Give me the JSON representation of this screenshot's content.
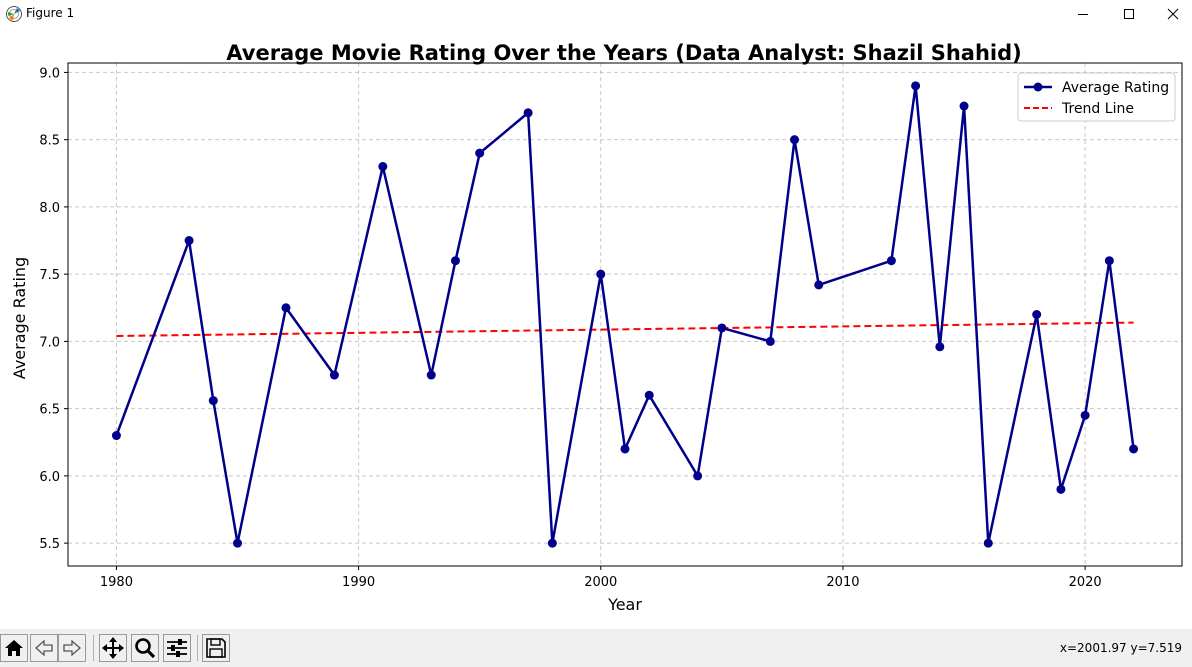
{
  "window": {
    "title": "Figure 1",
    "icons": [
      "matplotlib-app-icon",
      "minimize-icon",
      "maximize-icon",
      "close-icon"
    ]
  },
  "toolbar": {
    "buttons": [
      "home-icon",
      "back-arrow-icon",
      "forward-arrow-icon",
      "pan-icon",
      "zoom-icon",
      "configure-subplots-icon",
      "save-icon"
    ],
    "coordinates": "x=2001.97 y=7.519"
  },
  "chart_data": {
    "type": "line",
    "title": "Average Movie Rating Over the Years (Data Analyst: Shazil Shahid)",
    "xlabel": "Year",
    "ylabel": "Average Rating",
    "xlim": [
      1978,
      2024
    ],
    "ylim": [
      5.33,
      9.07
    ],
    "x_ticks": [
      1980,
      1990,
      2000,
      2010,
      2020
    ],
    "y_ticks": [
      5.5,
      6.0,
      6.5,
      7.0,
      7.5,
      8.0,
      8.5,
      9.0
    ],
    "x_tick_labels": [
      "1980",
      "1990",
      "2000",
      "2010",
      "2020"
    ],
    "y_tick_labels": [
      "5.5",
      "6.0",
      "6.5",
      "7.0",
      "7.5",
      "8.0",
      "8.5",
      "9.0"
    ],
    "grid": true,
    "legend_position": "top-right",
    "series": [
      {
        "name": "Average Rating",
        "color": "#00008b",
        "style": "solid-with-markers",
        "x": [
          1980,
          1983,
          1984,
          1985,
          1987,
          1989,
          1991,
          1993,
          1994,
          1995,
          1997,
          1998,
          2000,
          2001,
          2002,
          2004,
          2005,
          2007,
          2008,
          2009,
          2012,
          2013,
          2014,
          2015,
          2016,
          2018,
          2019,
          2020,
          2021,
          2022
        ],
        "values": [
          6.3,
          7.75,
          6.56,
          5.5,
          7.25,
          6.75,
          8.3,
          6.75,
          7.6,
          8.4,
          8.7,
          5.5,
          7.5,
          6.2,
          6.6,
          6.0,
          7.1,
          7.0,
          8.5,
          7.42,
          7.6,
          8.9,
          6.96,
          8.75,
          5.5,
          7.2,
          5.9,
          6.45,
          7.6,
          6.2
        ]
      },
      {
        "name": "Trend Line",
        "color": "#ff0000",
        "style": "dashed",
        "x": [
          1980,
          2022
        ],
        "values": [
          7.04,
          7.14
        ]
      }
    ]
  }
}
